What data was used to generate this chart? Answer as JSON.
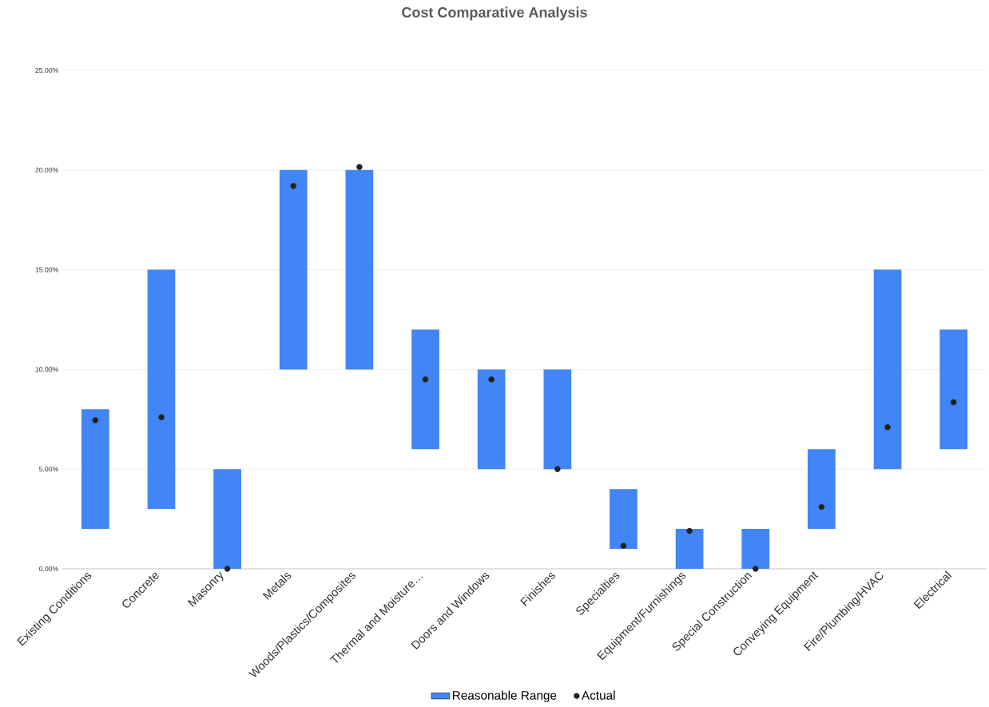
{
  "chart_data": {
    "type": "bar",
    "title": "Cost Comparative Analysis",
    "categories": [
      "Existing Conditions",
      "Concrete",
      "Masonry",
      "Metals",
      "Woods/Plastics/Composites",
      "Thermal and Moisture…",
      "Doors and Windows",
      "Finishes",
      "Specialties",
      "Equipment/Furnishings",
      "Special Construction",
      "Conveying Equipment",
      "Fire/Plumbing/HVAC",
      "Electrical"
    ],
    "series": [
      {
        "name": "Reasonable Range",
        "type": "bar",
        "color": "#4285f4",
        "values": [
          6,
          12,
          5,
          10,
          10,
          6,
          5,
          5,
          3,
          2,
          2,
          4,
          10,
          6
        ],
        "base": [
          2,
          3,
          0,
          10,
          10,
          6,
          5,
          5,
          1,
          0,
          0,
          2,
          5,
          6
        ]
      },
      {
        "name": "Actual",
        "type": "scatter",
        "color": "#212121",
        "values": [
          7.45,
          7.6,
          0,
          19.2,
          20.15,
          9.5,
          9.5,
          5.0,
          1.15,
          1.9,
          0,
          3.1,
          7.1,
          8.35
        ]
      }
    ],
    "ylim": [
      0,
      25
    ],
    "yticks": [
      {
        "value": 0,
        "label": "0.00%"
      },
      {
        "value": 5,
        "label": "5.00%"
      },
      {
        "value": 10,
        "label": "10.00%"
      },
      {
        "value": 15,
        "label": "15.00%"
      },
      {
        "value": 20,
        "label": "20.00%"
      },
      {
        "value": 25,
        "label": "25.00%"
      }
    ],
    "grid": "y",
    "legend": "bottom",
    "marker": "circle"
  }
}
